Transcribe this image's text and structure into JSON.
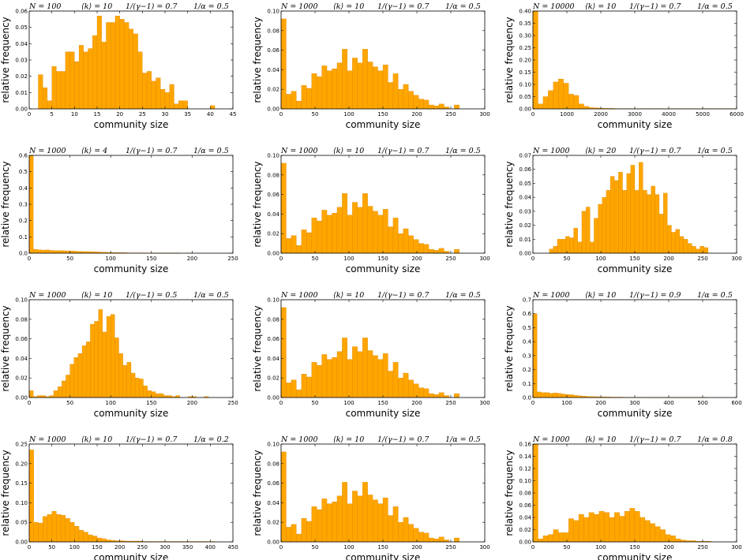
{
  "figure": {
    "xlabel": "community size",
    "ylabel": "relative frequency",
    "bar_color": "#FFA500",
    "bar_edge": "#D08000"
  },
  "chart_data": [
    {
      "type": "bar",
      "params": [
        "N = 100",
        "⟨k⟩ = 10",
        "1/(γ−1) = 0.7",
        "1/α = 0.5"
      ],
      "xlim": [
        0,
        45
      ],
      "xticks": [
        0,
        5,
        10,
        15,
        20,
        25,
        30,
        35,
        40,
        45
      ],
      "ylim": [
        0,
        0.06
      ],
      "yticks": [
        0.0,
        0.01,
        0.02,
        0.03,
        0.04,
        0.05,
        0.06
      ],
      "ytick_labels": [
        "0.00",
        "0.01",
        "0.02",
        "0.03",
        "0.04",
        "0.05",
        "0.06"
      ],
      "bin_start": 1,
      "bin_width": 1,
      "values": [
        0,
        0.021,
        0.013,
        0.005,
        0.026,
        0.023,
        0.023,
        0.035,
        0.035,
        0.029,
        0.039,
        0.035,
        0.037,
        0.045,
        0.057,
        0.041,
        0.053,
        0.053,
        0.057,
        0.055,
        0.053,
        0.049,
        0.046,
        0.035,
        0.022,
        0.023,
        0.017,
        0.019,
        0.012,
        0.01,
        0.015,
        0.003,
        0.005,
        0.005,
        0,
        0,
        0,
        0,
        0,
        0.002
      ]
    },
    {
      "type": "bar",
      "params": [
        "N = 1000",
        "⟨k⟩ = 10",
        "1/(γ−1) = 0.7",
        "1/α = 0.5"
      ],
      "xlim": [
        0,
        300
      ],
      "xticks": [
        0,
        50,
        100,
        150,
        200,
        250,
        300
      ],
      "ylim": [
        0,
        0.1
      ],
      "yticks": [
        0,
        0.02,
        0.04,
        0.06,
        0.08,
        0.1
      ],
      "ytick_labels": [
        "0.00",
        "0.02",
        "0.04",
        "0.06",
        "0.08",
        "0.10"
      ],
      "bin_start": 0,
      "bin_width": 7.5,
      "values": [
        0.092,
        0.015,
        0.018,
        0.008,
        0.024,
        0.021,
        0.036,
        0.033,
        0.044,
        0.039,
        0.041,
        0.047,
        0.061,
        0.039,
        0.052,
        0.047,
        0.061,
        0.048,
        0.043,
        0.039,
        0.045,
        0.027,
        0.036,
        0.02,
        0.025,
        0.018,
        0.014,
        0.01,
        0.009,
        0.004,
        0.003,
        0.005,
        0.002,
        0,
        0.004,
        0,
        0,
        0,
        0,
        0
      ]
    },
    {
      "type": "bar",
      "params": [
        "N = 10000",
        "⟨k⟩ = 10",
        "1/(γ−1) = 0.7",
        "1/α = 0.5"
      ],
      "xlim": [
        0,
        6000
      ],
      "xticks": [
        0,
        1000,
        2000,
        3000,
        4000,
        5000,
        6000
      ],
      "ylim": [
        0,
        0.4
      ],
      "yticks": [
        0,
        0.05,
        0.1,
        0.15,
        0.2,
        0.25,
        0.3,
        0.35,
        0.4
      ],
      "ytick_labels": [
        "0.00",
        "0.05",
        "0.10",
        "0.15",
        "0.20",
        "0.25",
        "0.30",
        "0.35",
        "0.40"
      ],
      "bin_start": 0,
      "bin_width": 150,
      "values": [
        0.4,
        0.02,
        0.05,
        0.075,
        0.11,
        0.122,
        0.105,
        0.06,
        0.055,
        0.02,
        0.01,
        0.005,
        0.004,
        0.003,
        0.002,
        0.002,
        0.001,
        0.001,
        0.001,
        0.001,
        0.001,
        0.001,
        0.001,
        0.001,
        0.001,
        0.001,
        0.001,
        0.001,
        0.001,
        0.001,
        0.001,
        0.001,
        0.001,
        0.001,
        0.001,
        0.001,
        0.001,
        0.001,
        0.001,
        0.001
      ]
    },
    {
      "type": "bar",
      "params": [
        "N = 1000",
        "⟨k⟩ = 4",
        "1/(γ−1) = 0.7",
        "1/α = 0.5"
      ],
      "xlim": [
        0,
        250
      ],
      "xticks": [
        0,
        50,
        100,
        150,
        200,
        250
      ],
      "ylim": [
        0,
        0.6
      ],
      "yticks": [
        0,
        0.1,
        0.2,
        0.3,
        0.4,
        0.5,
        0.6
      ],
      "ytick_labels": [
        "0.0",
        "0.1",
        "0.2",
        "0.3",
        "0.4",
        "0.5",
        "0.6"
      ],
      "bin_start": 0,
      "bin_width": 5,
      "values": [
        0.6,
        0.024,
        0.021,
        0.019,
        0.02,
        0.017,
        0.016,
        0.016,
        0.015,
        0.014,
        0.014,
        0.012,
        0.011,
        0.01,
        0.01,
        0.009,
        0.008,
        0.007,
        0.006,
        0.005,
        0.004,
        0.004,
        0.003,
        0.003,
        0.002,
        0.002,
        0.002,
        0.002,
        0.002,
        0.001,
        0.001,
        0.001,
        0.001,
        0.001,
        0.001,
        0.001,
        0.001,
        0,
        0,
        0.001
      ]
    },
    {
      "type": "bar",
      "params": [
        "N = 1000",
        "⟨k⟩ = 10",
        "1/(γ−1) = 0.7",
        "1/α = 0.5"
      ],
      "xlim": [
        0,
        300
      ],
      "xticks": [
        0,
        50,
        100,
        150,
        200,
        250,
        300
      ],
      "ylim": [
        0,
        0.1
      ],
      "yticks": [
        0,
        0.02,
        0.04,
        0.06,
        0.08,
        0.1
      ],
      "ytick_labels": [
        "0.00",
        "0.02",
        "0.04",
        "0.06",
        "0.08",
        "0.10"
      ],
      "bin_start": 0,
      "bin_width": 7.5,
      "values": [
        0.092,
        0.015,
        0.018,
        0.008,
        0.024,
        0.021,
        0.036,
        0.033,
        0.044,
        0.039,
        0.041,
        0.047,
        0.061,
        0.039,
        0.052,
        0.047,
        0.061,
        0.048,
        0.043,
        0.039,
        0.045,
        0.027,
        0.036,
        0.02,
        0.025,
        0.018,
        0.014,
        0.01,
        0.009,
        0.004,
        0.003,
        0.005,
        0.002,
        0,
        0.004,
        0,
        0,
        0,
        0,
        0
      ]
    },
    {
      "type": "bar",
      "params": [
        "N = 1000",
        "⟨k⟩ = 20",
        "1/(γ−1) = 0.7",
        "1/α = 0.5"
      ],
      "xlim": [
        0,
        300
      ],
      "xticks": [
        0,
        50,
        100,
        150,
        200,
        250,
        300
      ],
      "ylim": [
        0,
        0.07
      ],
      "yticks": [
        0,
        0.01,
        0.02,
        0.03,
        0.04,
        0.05,
        0.06,
        0.07
      ],
      "ytick_labels": [
        "0.00",
        "0.01",
        "0.02",
        "0.03",
        "0.04",
        "0.05",
        "0.06",
        "0.07"
      ],
      "bin_start": 24,
      "bin_width": 6,
      "values": [
        0.003,
        0.005,
        0.01,
        0.01,
        0.012,
        0.011,
        0.018,
        0.008,
        0.03,
        0.033,
        0.008,
        0.025,
        0.035,
        0.04,
        0.045,
        0.055,
        0.052,
        0.058,
        0.045,
        0.057,
        0.063,
        0.045,
        0.065,
        0.045,
        0.042,
        0.048,
        0.042,
        0.028,
        0.043,
        0.02,
        0.015,
        0.017,
        0.012,
        0.01,
        0.007,
        0.005,
        0.003,
        0.005,
        0.004
      ]
    },
    {
      "type": "bar",
      "params": [
        "N = 1000",
        "⟨k⟩ = 10",
        "1/(γ−1) = 0.5",
        "1/α = 0.5"
      ],
      "xlim": [
        0,
        250
      ],
      "xticks": [
        0,
        50,
        100,
        150,
        200,
        250
      ],
      "ylim": [
        0,
        0.1
      ],
      "yticks": [
        0,
        0.02,
        0.04,
        0.06,
        0.08,
        0.1
      ],
      "ytick_labels": [
        "0.00",
        "0.02",
        "0.04",
        "0.06",
        "0.08",
        "0.10"
      ],
      "bin_start": 0,
      "bin_width": 5,
      "values": [
        0.007,
        0.001,
        0.002,
        0.002,
        0.001,
        0.002,
        0.007,
        0.011,
        0.017,
        0.023,
        0.034,
        0.041,
        0.045,
        0.053,
        0.057,
        0.075,
        0.078,
        0.09,
        0.067,
        0.083,
        0.085,
        0.061,
        0.045,
        0.033,
        0.036,
        0.025,
        0.02,
        0.019,
        0.012,
        0.007,
        0.006,
        0.004,
        0.004,
        0.002,
        0.002,
        0.001,
        0.002,
        0,
        0,
        0.001,
        0.001,
        0,
        0,
        0.001
      ]
    },
    {
      "type": "bar",
      "params": [
        "N = 1000",
        "⟨k⟩ = 10",
        "1/(γ−1) = 0.7",
        "1/α = 0.5"
      ],
      "xlim": [
        0,
        300
      ],
      "xticks": [
        0,
        50,
        100,
        150,
        200,
        250,
        300
      ],
      "ylim": [
        0,
        0.1
      ],
      "yticks": [
        0,
        0.02,
        0.04,
        0.06,
        0.08,
        0.1
      ],
      "ytick_labels": [
        "0.00",
        "0.02",
        "0.04",
        "0.06",
        "0.08",
        "0.10"
      ],
      "bin_start": 0,
      "bin_width": 7.5,
      "values": [
        0.092,
        0.015,
        0.018,
        0.008,
        0.024,
        0.021,
        0.036,
        0.033,
        0.044,
        0.039,
        0.041,
        0.047,
        0.061,
        0.039,
        0.052,
        0.047,
        0.061,
        0.048,
        0.043,
        0.039,
        0.045,
        0.027,
        0.036,
        0.02,
        0.025,
        0.018,
        0.014,
        0.01,
        0.009,
        0.004,
        0.003,
        0.005,
        0.002,
        0,
        0.004,
        0,
        0,
        0,
        0,
        0
      ]
    },
    {
      "type": "bar",
      "params": [
        "N = 1000",
        "⟨k⟩ = 10",
        "1/(γ−1) = 0.9",
        "1/α = 0.5"
      ],
      "xlim": [
        0,
        600
      ],
      "xticks": [
        0,
        100,
        200,
        300,
        400,
        500,
        600
      ],
      "ylim": [
        0,
        0.7
      ],
      "yticks": [
        0,
        0.1,
        0.2,
        0.3,
        0.4,
        0.5,
        0.6,
        0.7
      ],
      "ytick_labels": [
        "0.0",
        "0.1",
        "0.2",
        "0.3",
        "0.4",
        "0.5",
        "0.6",
        "0.7"
      ],
      "bin_start": 0,
      "bin_width": 12,
      "values": [
        0.6,
        0.04,
        0.035,
        0.035,
        0.03,
        0.033,
        0.03,
        0.025,
        0.022,
        0.02,
        0.015,
        0.012,
        0.01,
        0.008,
        0.007,
        0.006,
        0.005,
        0.005,
        0.004,
        0.003,
        0.003,
        0.003,
        0.002,
        0.002,
        0.002,
        0.002,
        0.002,
        0.001,
        0.001,
        0.001,
        0.001,
        0.001,
        0.001,
        0.001,
        0.001,
        0.001,
        0.001,
        0.001,
        0.001,
        0.001,
        0.001,
        0.001,
        0.001
      ]
    },
    {
      "type": "bar",
      "params": [
        "N = 1000",
        "⟨k⟩ = 10",
        "1/(γ−1) = 0.7",
        "1/α = 0.2"
      ],
      "xlim": [
        0,
        450
      ],
      "xticks": [
        0,
        50,
        100,
        150,
        200,
        250,
        300,
        350,
        400,
        450
      ],
      "ylim": [
        0,
        0.25
      ],
      "yticks": [
        0,
        0.05,
        0.1,
        0.15,
        0.2,
        0.25
      ],
      "ytick_labels": [
        "0.00",
        "0.05",
        "0.10",
        "0.15",
        "0.20",
        "0.25"
      ],
      "bin_start": 0,
      "bin_width": 10,
      "values": [
        0.235,
        0.05,
        0.048,
        0.065,
        0.07,
        0.078,
        0.07,
        0.068,
        0.06,
        0.05,
        0.04,
        0.03,
        0.025,
        0.018,
        0.015,
        0.01,
        0.008,
        0.005,
        0.004,
        0.003,
        0.003,
        0.002,
        0.002,
        0.002,
        0.002,
        0.001,
        0.001,
        0.001,
        0.001,
        0.001,
        0.001,
        0.001,
        0.001,
        0.001,
        0.001,
        0.001,
        0.001,
        0.001,
        0.001,
        0.001,
        0.001
      ]
    },
    {
      "type": "bar",
      "params": [
        "N = 1000",
        "⟨k⟩ = 10",
        "1/(γ−1) = 0.7",
        "1/α = 0.5"
      ],
      "xlim": [
        0,
        300
      ],
      "xticks": [
        0,
        50,
        100,
        150,
        200,
        250,
        300
      ],
      "ylim": [
        0,
        0.1
      ],
      "yticks": [
        0,
        0.02,
        0.04,
        0.06,
        0.08,
        0.1
      ],
      "ytick_labels": [
        "0.00",
        "0.02",
        "0.04",
        "0.06",
        "0.08",
        "0.10"
      ],
      "bin_start": 0,
      "bin_width": 7.5,
      "values": [
        0.092,
        0.015,
        0.018,
        0.008,
        0.024,
        0.021,
        0.036,
        0.033,
        0.044,
        0.039,
        0.041,
        0.047,
        0.061,
        0.039,
        0.052,
        0.047,
        0.061,
        0.048,
        0.043,
        0.039,
        0.045,
        0.027,
        0.036,
        0.02,
        0.025,
        0.018,
        0.014,
        0.01,
        0.009,
        0.004,
        0.003,
        0.005,
        0.002,
        0,
        0.004,
        0,
        0,
        0,
        0,
        0
      ]
    },
    {
      "type": "bar",
      "params": [
        "N = 1000",
        "⟨k⟩ = 10",
        "1/(γ−1) = 0.7",
        "1/α = 0.8"
      ],
      "xlim": [
        0,
        300
      ],
      "xticks": [
        0,
        50,
        100,
        150,
        200,
        250,
        300
      ],
      "ylim": [
        0,
        0.16
      ],
      "yticks": [
        0,
        0.02,
        0.04,
        0.06,
        0.08,
        0.1,
        0.12,
        0.14,
        0.16
      ],
      "ytick_labels": [
        "0.00",
        "0.02",
        "0.04",
        "0.06",
        "0.08",
        "0.10",
        "0.12",
        "0.14",
        "0.16"
      ],
      "bin_start": 0,
      "bin_width": 7.5,
      "values": [
        0.16,
        0.005,
        0.01,
        0.012,
        0.02,
        0.015,
        0.015,
        0.038,
        0.035,
        0.045,
        0.04,
        0.048,
        0.045,
        0.05,
        0.048,
        0.04,
        0.048,
        0.042,
        0.05,
        0.055,
        0.05,
        0.04,
        0.035,
        0.03,
        0.025,
        0.02,
        0.012,
        0.01,
        0.005,
        0.003,
        0.002,
        0.002,
        0.001,
        0.001,
        0.001,
        0,
        0,
        0,
        0,
        0
      ]
    }
  ]
}
